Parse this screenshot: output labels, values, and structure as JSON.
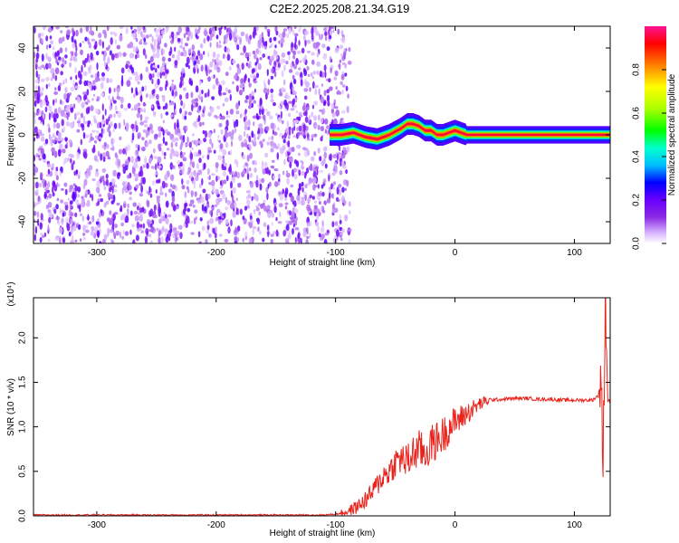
{
  "title": "C2E2.2025.208.21.34.G19",
  "chart_data": [
    {
      "type": "heatmap",
      "xlabel": "Height of straight line (km)",
      "ylabel": "Frequency (Hz)",
      "xlim": [
        -353,
        130
      ],
      "ylim": [
        -50,
        50
      ],
      "x_ticks": [
        "-300",
        "-200",
        "-100",
        "0",
        "100"
      ],
      "x_tick_values": [
        -300,
        -200,
        -100,
        0,
        100
      ],
      "y_ticks": [
        "-40",
        "-20",
        "0",
        "20",
        "40"
      ],
      "y_tick_values": [
        -40,
        -20,
        0,
        20,
        40
      ],
      "colorbar": {
        "label": "Normalized spectral amplitude",
        "range": [
          0,
          1
        ],
        "ticks": [
          "0.0",
          "0.2",
          "0.4",
          "0.6",
          "0.8"
        ],
        "tick_values": [
          0,
          0.2,
          0.4,
          0.6,
          0.8
        ],
        "colors": [
          "#ffffff",
          "#d7b2ff",
          "#8a2be2",
          "#6a00ff",
          "#0000ff",
          "#00bfff",
          "#00ffcc",
          "#00ff00",
          "#aaff00",
          "#ffff00",
          "#ff8000",
          "#ff0000",
          "#ff1493"
        ]
      },
      "noise_region": {
        "x_range": [
          -353,
          -88
        ],
        "typical_amplitude": 0.2
      },
      "ridge": {
        "x": [
          -105,
          -95,
          -85,
          -75,
          -65,
          -55,
          -45,
          -40,
          -35,
          -30,
          -25,
          -20,
          -15,
          -10,
          -5,
          0,
          5,
          10,
          20,
          40,
          60,
          80,
          100,
          120,
          130
        ],
        "frequency": [
          0,
          0,
          1,
          -1,
          -2,
          0,
          3,
          5,
          5,
          4,
          2,
          2,
          0,
          0,
          1,
          2,
          1,
          0,
          0,
          0,
          0,
          0,
          0,
          0,
          0
        ]
      }
    },
    {
      "type": "line",
      "xlabel": "Height of straight line (km)",
      "ylabel": "SNR (10 * v/v)",
      "y_multiplier_label": "(x10⁴)",
      "xlim": [
        -353,
        130
      ],
      "ylim": [
        0,
        2.45
      ],
      "x_ticks": [
        "-300",
        "-200",
        "-100",
        "0",
        "100"
      ],
      "x_tick_values": [
        -300,
        -200,
        -100,
        0,
        100
      ],
      "y_ticks": [
        "0.0",
        "0.5",
        "1.0",
        "1.5",
        "2.0"
      ],
      "y_tick_values": [
        0,
        0.5,
        1.0,
        1.5,
        2.0
      ],
      "series": [
        {
          "color": "#e8231b",
          "x": [
            -353,
            -300,
            -250,
            -200,
            -150,
            -110,
            -100,
            -95,
            -90,
            -85,
            -80,
            -75,
            -70,
            -65,
            -60,
            -55,
            -50,
            -45,
            -40,
            -35,
            -30,
            -25,
            -20,
            -15,
            -10,
            -5,
            0,
            5,
            10,
            15,
            20,
            25,
            30,
            40,
            50,
            60,
            70,
            80,
            90,
            100,
            110,
            115,
            120,
            122,
            124,
            126,
            128,
            130
          ],
          "y": [
            0.01,
            0.01,
            0.01,
            0.01,
            0.01,
            0.01,
            0.02,
            0.03,
            0.05,
            0.08,
            0.12,
            0.18,
            0.25,
            0.35,
            0.45,
            0.5,
            0.6,
            0.65,
            0.6,
            0.7,
            0.75,
            0.7,
            0.8,
            0.85,
            0.9,
            1.0,
            1.05,
            1.1,
            1.15,
            1.2,
            1.25,
            1.28,
            1.3,
            1.31,
            1.32,
            1.32,
            1.31,
            1.31,
            1.3,
            1.3,
            1.3,
            1.3,
            1.35,
            1.5,
            0.7,
            2.4,
            1.3,
            1.3
          ]
        }
      ]
    }
  ]
}
